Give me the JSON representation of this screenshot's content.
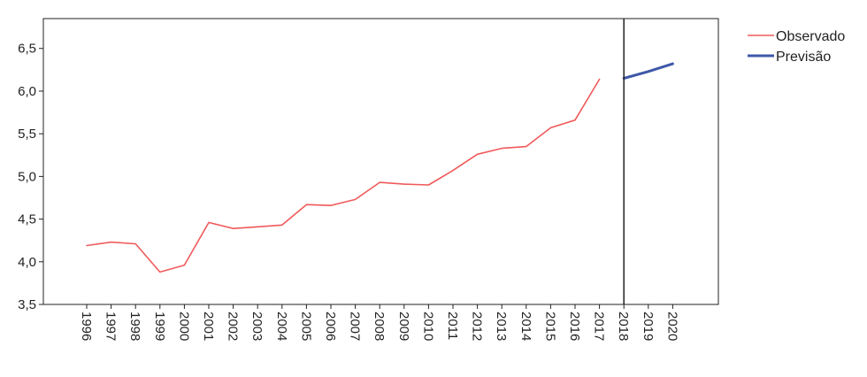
{
  "chart_data": {
    "type": "line",
    "title": "",
    "xlabel": "",
    "ylabel": "",
    "categories": [
      "1996",
      "1997",
      "1998",
      "1999",
      "2000",
      "2001",
      "2002",
      "2003",
      "2004",
      "2005",
      "2006",
      "2007",
      "2008",
      "2009",
      "2010",
      "2011",
      "2012",
      "2013",
      "2014",
      "2015",
      "2016",
      "2017",
      "2018",
      "2019",
      "2020"
    ],
    "ylim": [
      3.5,
      6.85
    ],
    "y_ticks": [
      {
        "value": 3.5,
        "label": "3,5"
      },
      {
        "value": 4.0,
        "label": "4,0"
      },
      {
        "value": 4.5,
        "label": "4,5"
      },
      {
        "value": 5.0,
        "label": "5,0"
      },
      {
        "value": 5.5,
        "label": "5,5"
      },
      {
        "value": 6.0,
        "label": "6,0"
      },
      {
        "value": 6.5,
        "label": "6,5"
      }
    ],
    "series": [
      {
        "name": "Observado",
        "color": "#f05a5a",
        "x": [
          "1996",
          "1997",
          "1998",
          "1999",
          "2000",
          "2001",
          "2002",
          "2003",
          "2004",
          "2005",
          "2006",
          "2007",
          "2008",
          "2009",
          "2010",
          "2011",
          "2012",
          "2013",
          "2014",
          "2015",
          "2016",
          "2017"
        ],
        "values": [
          4.19,
          4.23,
          4.21,
          3.88,
          3.96,
          4.46,
          4.39,
          4.41,
          4.43,
          4.67,
          4.66,
          4.73,
          4.93,
          4.91,
          4.9,
          5.07,
          5.26,
          5.33,
          5.35,
          5.57,
          5.66,
          6.14
        ]
      },
      {
        "name": "Previsão",
        "color": "#3e58a8",
        "x": [
          "2018",
          "2019",
          "2020"
        ],
        "values": [
          6.15,
          6.23,
          6.32
        ]
      }
    ],
    "vertical_line_at": "2018",
    "grid": false,
    "legend_position": "top-right"
  }
}
